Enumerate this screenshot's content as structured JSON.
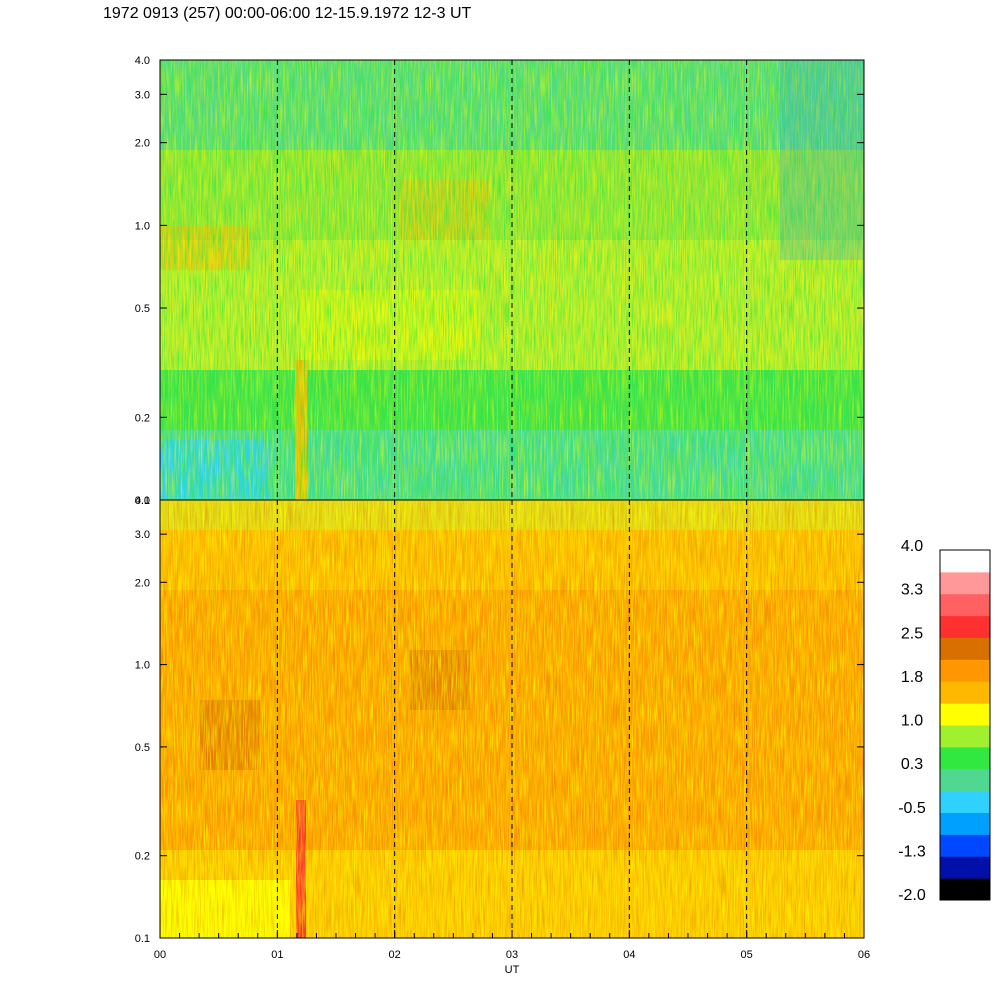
{
  "title": "1972 0913 (257) 00:00-06:00 12-15.9.1972  12-3 UT",
  "chart_data": {
    "type": "heatmap",
    "xlabel": "UT",
    "x_tick_labels": [
      "00",
      "01",
      "02",
      "03",
      "04",
      "05",
      "06"
    ],
    "xlim": [
      0,
      6
    ],
    "y_scale": "log",
    "panels": [
      {
        "ylim": [
          0.1,
          4.0
        ],
        "y_ticks": [
          0.1,
          0.2,
          0.5,
          1.0,
          2.0,
          3.0,
          4.0
        ],
        "y_tick_labels": [
          "0.1",
          "0.2",
          "0.5",
          "1.0",
          "2.0",
          "3.0",
          "4.0"
        ]
      },
      {
        "ylim": [
          0.1,
          4.0
        ],
        "y_ticks": [
          0.1,
          0.2,
          0.5,
          1.0,
          2.0,
          3.0,
          4.0
        ],
        "y_tick_labels": [
          "0.1",
          "0.2",
          "0.5",
          "1.0",
          "2.0",
          "3.0",
          "4.0"
        ]
      }
    ],
    "hour_gridlines": [
      1,
      2,
      3,
      4,
      5
    ],
    "grid_style": "dashed",
    "colorbar": {
      "colors": [
        "#000000",
        "#0010a8",
        "#0048ff",
        "#00a0ff",
        "#30d0ff",
        "#50d890",
        "#30e840",
        "#a0f030",
        "#ffff00",
        "#ffb800",
        "#ff9800",
        "#d87000",
        "#ff3030",
        "#ff6060",
        "#ff9898",
        "#ffffff"
      ],
      "tick_labels": [
        "4.0",
        "3.3",
        "2.5",
        "1.8",
        "1.0",
        "0.3",
        "-0.5",
        "-1.3",
        "-2.0"
      ]
    }
  }
}
